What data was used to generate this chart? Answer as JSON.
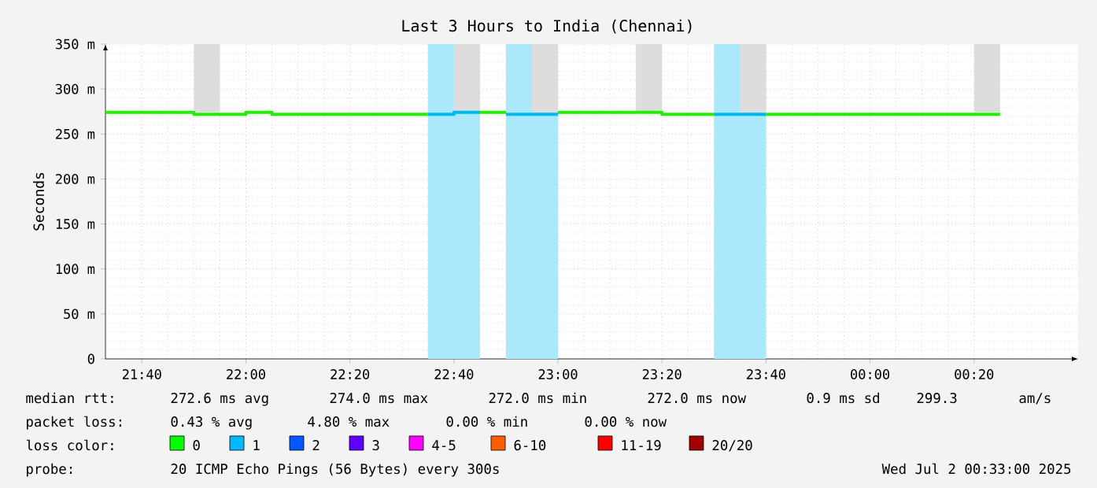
{
  "chart_data": {
    "type": "line",
    "title": "Last 3 Hours to India (Chennai)",
    "ylabel": "Seconds",
    "xlim": [
      "2025-07-01T21:33",
      "2025-07-02T00:40"
    ],
    "ylim": [
      0,
      350
    ],
    "xticks": [
      {
        "value": "2025-07-01T21:40",
        "label": "21:40"
      },
      {
        "value": "2025-07-01T22:00",
        "label": "22:00"
      },
      {
        "value": "2025-07-01T22:20",
        "label": "22:20"
      },
      {
        "value": "2025-07-01T22:40",
        "label": "22:40"
      },
      {
        "value": "2025-07-01T23:00",
        "label": "23:00"
      },
      {
        "value": "2025-07-01T23:20",
        "label": "23:20"
      },
      {
        "value": "2025-07-01T23:40",
        "label": "23:40"
      },
      {
        "value": "2025-07-02T00:00",
        "label": "00:00"
      },
      {
        "value": "2025-07-02T00:20",
        "label": "00:20"
      }
    ],
    "yticks": [
      {
        "value": 0,
        "label": "0"
      },
      {
        "value": 50,
        "label": "50 m"
      },
      {
        "value": 100,
        "label": "100 m"
      },
      {
        "value": 150,
        "label": "150 m"
      },
      {
        "value": 200,
        "label": "200 m"
      },
      {
        "value": 250,
        "label": "250 m"
      },
      {
        "value": 300,
        "label": "300 m"
      },
      {
        "value": 350,
        "label": "350 m"
      }
    ],
    "grid": true,
    "bands": [
      {
        "axis": "x",
        "from": "2025-07-01T22:35",
        "to": "2025-07-01T22:45",
        "color": "#aae8fc"
      },
      {
        "axis": "x",
        "from": "2025-07-01T22:50",
        "to": "2025-07-01T23:00",
        "color": "#aae8fc"
      },
      {
        "axis": "x",
        "from": "2025-07-01T23:30",
        "to": "2025-07-01T23:40",
        "color": "#aae8fc"
      }
    ],
    "series": [
      {
        "type": "bar",
        "color": "#dddddd",
        "x": [
          "2025-07-01T21:52:30",
          "2025-07-01T22:42:30",
          "2025-07-01T22:57:30",
          "2025-07-01T23:17:30",
          "2025-07-01T23:37:30",
          "2025-07-02T00:22:30"
        ],
        "base": [
          274,
          276,
          274,
          274,
          274,
          274
        ],
        "values": [
          76,
          74,
          76,
          76,
          76,
          76
        ]
      },
      {
        "color": "#22ee00",
        "x": [
          "2025-07-01T21:33",
          "2025-07-01T21:50",
          "2025-07-01T21:50",
          "2025-07-01T22:00",
          "2025-07-01T22:00",
          "2025-07-01T22:05",
          "2025-07-01T22:05",
          "2025-07-01T22:35",
          "2025-07-01T22:40",
          "2025-07-01T22:45",
          "2025-07-01T22:50",
          "2025-07-01T22:55",
          "2025-07-01T23:00",
          "2025-07-01T23:20",
          "2025-07-01T23:20",
          "2025-07-01T23:30",
          "2025-07-01T23:35",
          "2025-07-01T23:40",
          "2025-07-02T00:25"
        ],
        "values": [
          274,
          274,
          272,
          272,
          274,
          274,
          272,
          272,
          null,
          274,
          274,
          null,
          274,
          274,
          272,
          272,
          null,
          272,
          272
        ]
      },
      {
        "color": "#00b8ee",
        "x": [
          "2025-07-01T22:35",
          "2025-07-01T22:40",
          "2025-07-01T22:40",
          "2025-07-01T22:45",
          "2025-07-01T22:47",
          "2025-07-01T22:50",
          "2025-07-01T23:00",
          "2025-07-01T23:15",
          "2025-07-01T23:30",
          "2025-07-01T23:40"
        ],
        "values": [
          272,
          272,
          274,
          274,
          null,
          272,
          272,
          null,
          272,
          272
        ]
      }
    ],
    "annotations": [
      "median rtt:",
      "272.6 ms avg",
      "274.0 ms max",
      "272.0 ms min",
      "272.0 ms now",
      "0.9 ms sd",
      "299.3",
      "am/s",
      "packet loss:",
      "0.43 % avg",
      "4.80 % max",
      "0.00 % min",
      "0.00 % now",
      "loss color:",
      "0",
      "1",
      "2",
      "3",
      "4-5",
      "6-10",
      "11-19",
      "20/20",
      "probe:",
      "20 ICMP Echo Pings (56 Bytes) every 300s",
      "Wed Jul 2 00:33:00 2025"
    ]
  }
}
